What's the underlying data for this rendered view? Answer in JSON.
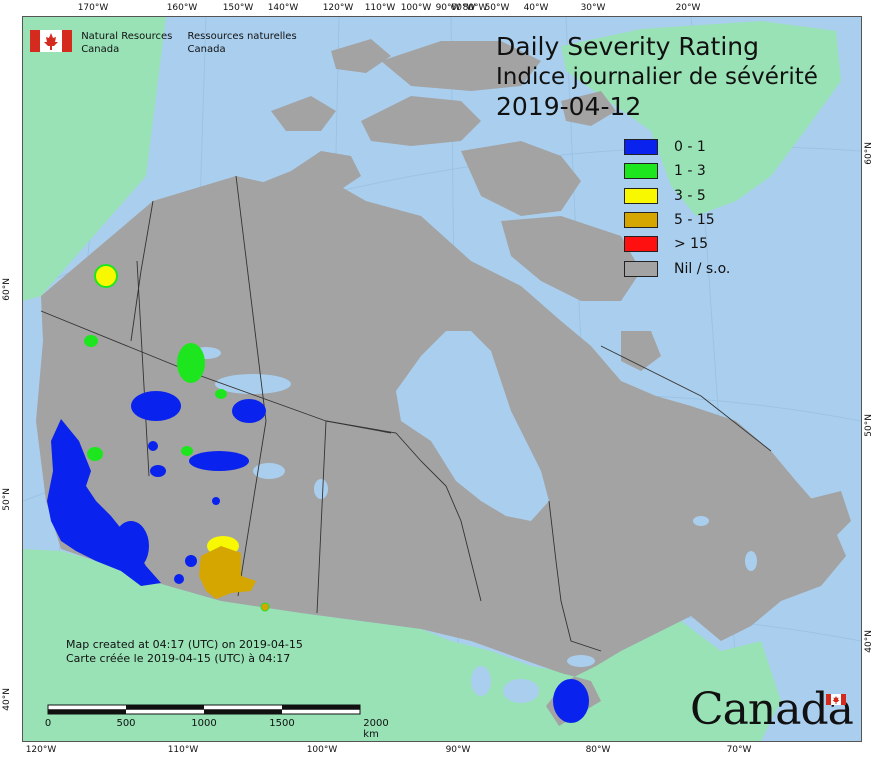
{
  "agency": {
    "name_en_line1": "Natural Resources",
    "name_en_line2": "Canada",
    "name_fr_line1": "Ressources naturelles",
    "name_fr_line2": "Canada",
    "flag_icon": "canada-flag-icon"
  },
  "title": {
    "line1": "Daily Severity Rating",
    "line2": "Indice journalier de sévérité",
    "date": "2019-04-12"
  },
  "legend": [
    {
      "label": "0 - 1",
      "color": "#0a22ee"
    },
    {
      "label": "1 - 3",
      "color": "#1ee61e"
    },
    {
      "label": "3 - 5",
      "color": "#f8f800"
    },
    {
      "label": "5 - 15",
      "color": "#d6a600"
    },
    {
      "label": "> 15",
      "color": "#ff1010"
    },
    {
      "label": "Nil / s.o.",
      "color": "#a3a3a3"
    }
  ],
  "credits": {
    "line_en": "Map created at 04:17 (UTC) on 2019-04-15",
    "line_fr": "Carte créée le 2019-04-15 (UTC) à 04:17"
  },
  "scale": {
    "labels": [
      "0",
      "500",
      "1000",
      "1500",
      "2000  km"
    ]
  },
  "wordmark": "Canada",
  "graticule": {
    "top": [
      "170°W",
      "160°W",
      "150°W",
      "140°W",
      "120°W",
      "110°W",
      "100°W",
      "90°W",
      "80°W",
      "60°W",
      "50°W",
      "40°W",
      "30°W",
      "20°W"
    ],
    "bottom": [
      "120°W",
      "110°W",
      "100°W",
      "90°W",
      "80°W",
      "70°W"
    ],
    "left": [
      "60°N",
      "50°N",
      "40°N"
    ],
    "right": [
      "60°N",
      "50°N",
      "40°N"
    ]
  },
  "colors": {
    "ocean": "#aacfee",
    "foreign_land": "#98e2b6",
    "canada_nil": "#a3a3a3",
    "boundary": "#333333"
  }
}
